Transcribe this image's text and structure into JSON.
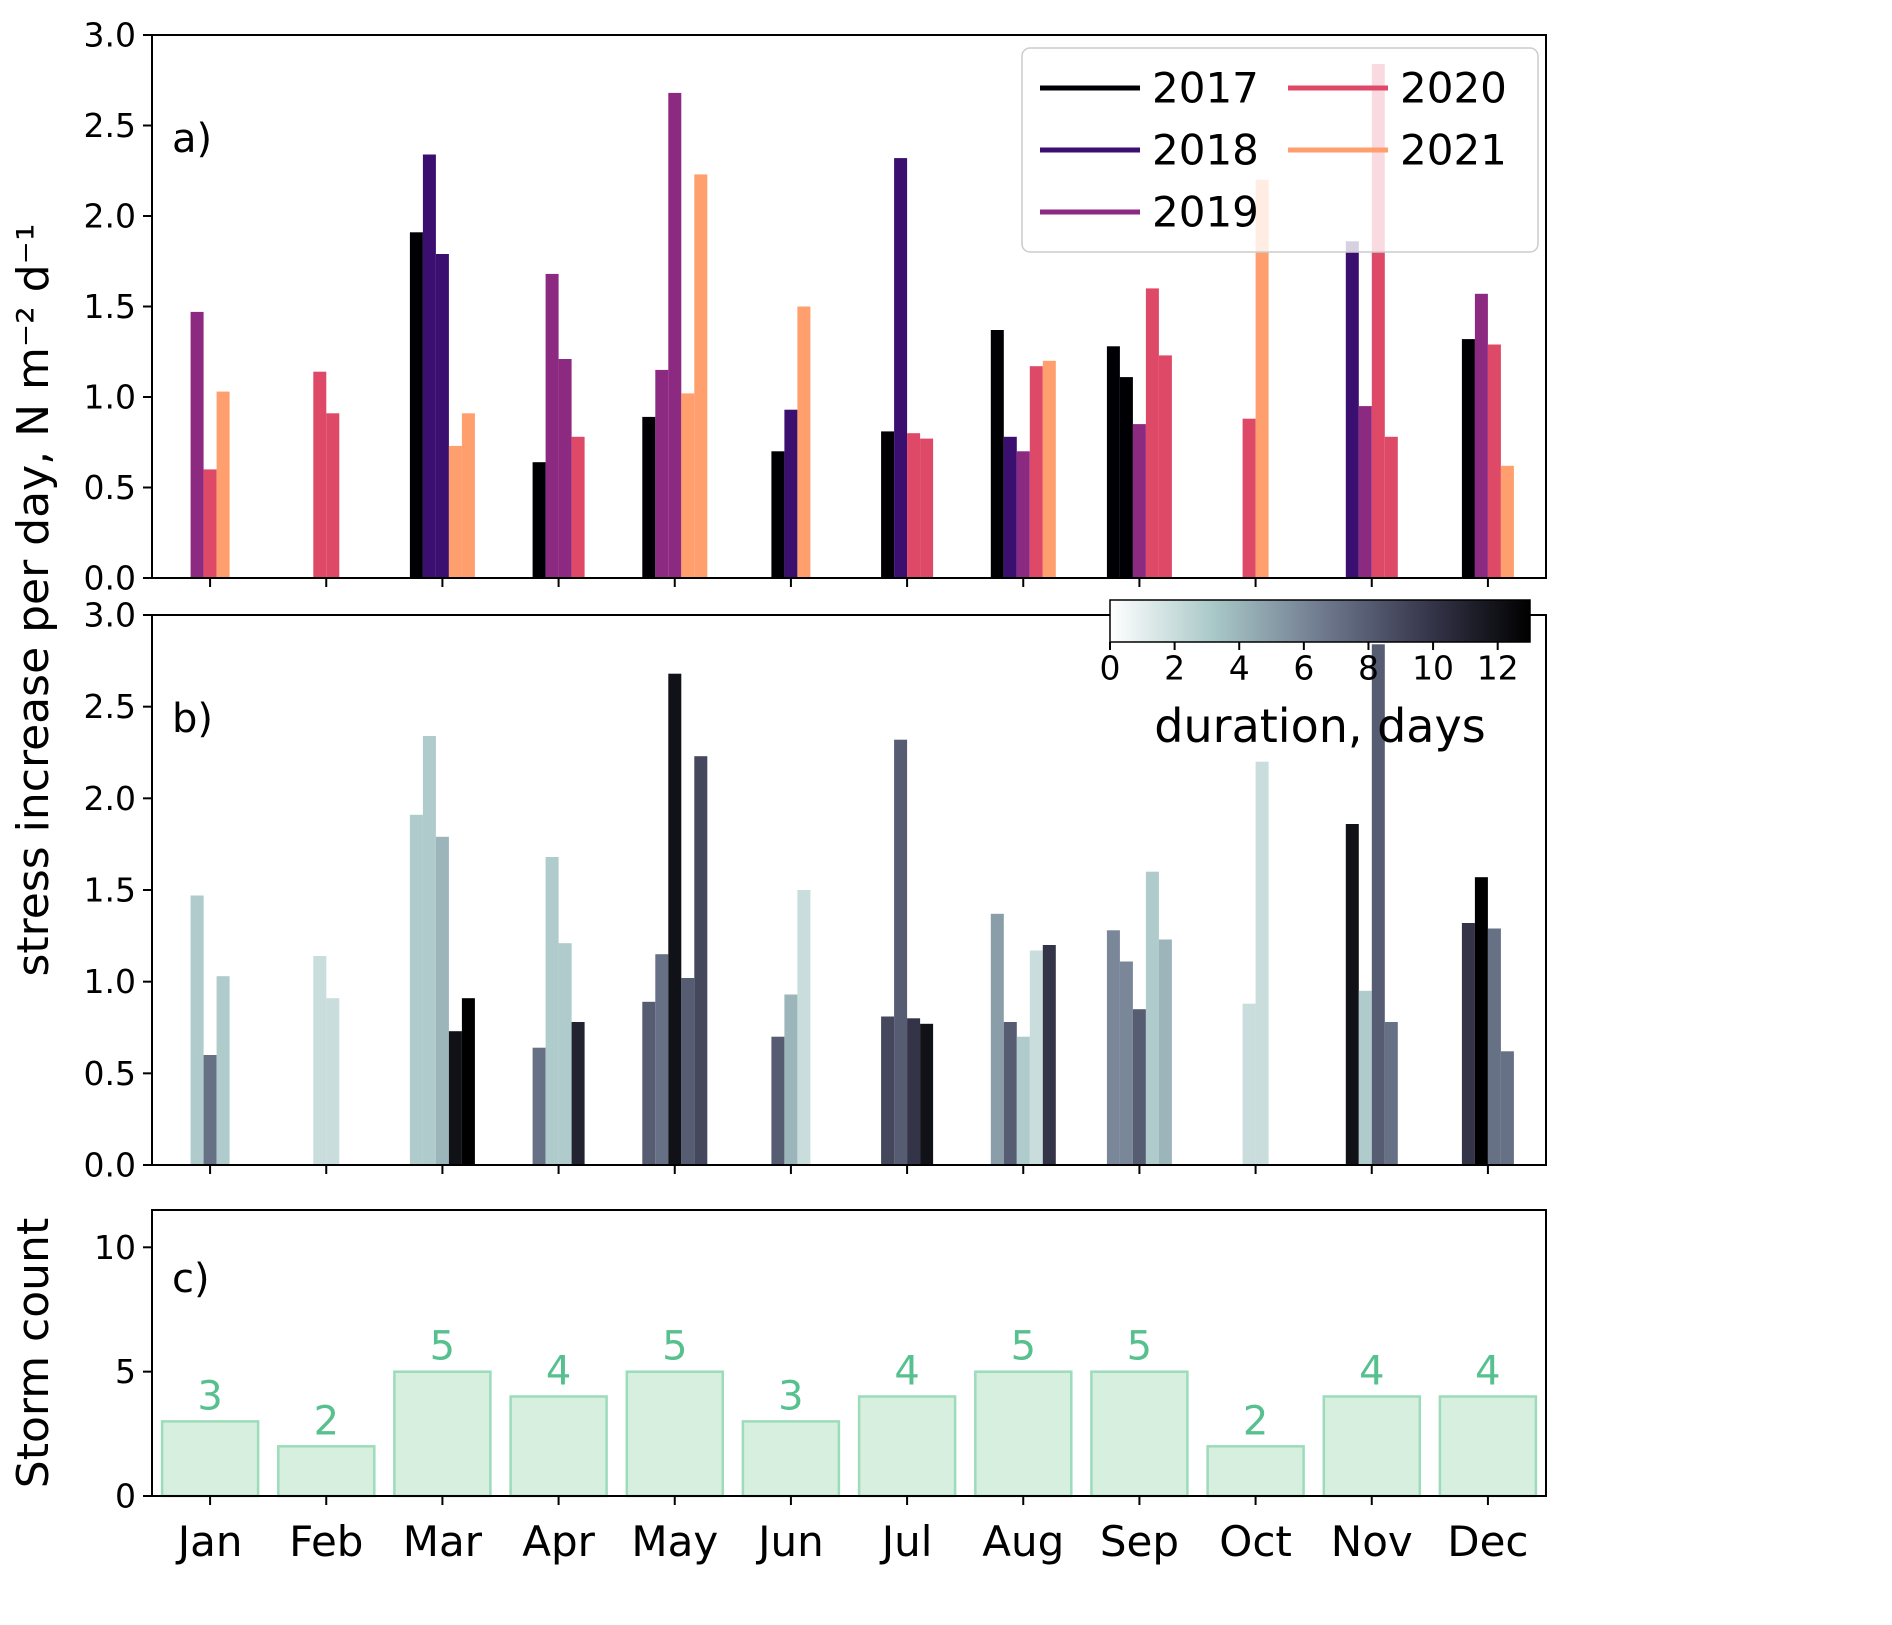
{
  "ui": {
    "ylabel_ab": "stress increase per day, N m⁻² d⁻¹",
    "ylabel_c": "Storm count"
  },
  "chart_data": {
    "months": [
      "Jan",
      "Feb",
      "Mar",
      "Apr",
      "May",
      "Jun",
      "Jul",
      "Aug",
      "Sep",
      "Oct",
      "Nov",
      "Dec"
    ],
    "year_colors": {
      "2017": "#000004",
      "2018": "#3b0f70",
      "2019": "#8c2981",
      "2020": "#de4968",
      "2021": "#fe9f6d"
    },
    "panel_a": {
      "label": "a)",
      "type": "bar",
      "color_by": "year",
      "ylim": [
        0,
        3.0
      ],
      "yticks": [
        0,
        0.5,
        1,
        1.5,
        2,
        2.5,
        3
      ],
      "ytick_labels": [
        "0.0",
        "0.5",
        "1.0",
        "1.5",
        "2.0",
        "2.5",
        "3.0"
      ],
      "legend": {
        "position": "upper right",
        "columns": 2,
        "entries": [
          {
            "label": "2017",
            "color": "#000004"
          },
          {
            "label": "2018",
            "color": "#3b0f70"
          },
          {
            "label": "2019",
            "color": "#8c2981"
          },
          {
            "label": "2020",
            "color": "#de4968"
          },
          {
            "label": "2021",
            "color": "#fe9f6d"
          }
        ]
      }
    },
    "panel_b": {
      "label": "b)",
      "type": "bar",
      "color_by": "duration_days",
      "ylim": [
        0,
        3.0
      ],
      "yticks": [
        0,
        0.5,
        1,
        1.5,
        2,
        2.5,
        3
      ],
      "ytick_labels": [
        "0.0",
        "0.5",
        "1.0",
        "1.5",
        "2.0",
        "2.5",
        "3.0"
      ],
      "colorbar": {
        "label": "duration, days",
        "ticks": [
          0,
          2,
          4,
          6,
          8,
          10,
          12
        ],
        "vmin": 0,
        "vmax": 13,
        "colormap_stops": [
          [
            0,
            "#ffffff"
          ],
          [
            0.25,
            "#a8c7c7"
          ],
          [
            0.5,
            "#707b90"
          ],
          [
            0.75,
            "#38384e"
          ],
          [
            1,
            "#000000"
          ]
        ]
      }
    },
    "panel_c": {
      "label": "c)",
      "type": "bar",
      "ylabel": "Storm count",
      "categories": [
        "Jan",
        "Feb",
        "Mar",
        "Apr",
        "May",
        "Jun",
        "Jul",
        "Aug",
        "Sep",
        "Oct",
        "Nov",
        "Dec"
      ],
      "values": [
        3,
        2,
        5,
        4,
        5,
        3,
        4,
        5,
        5,
        2,
        4,
        4
      ],
      "ylim": [
        0,
        11.5
      ],
      "yticks": [
        0,
        5,
        10
      ],
      "ytick_labels": [
        "0",
        "5",
        "10"
      ],
      "bar_fill": "#d6efdf",
      "bar_edge": "#9cdcbb",
      "value_label_color": "#57c08f"
    },
    "storms": [
      {
        "month": "Jan",
        "year": 2019,
        "stress_increase_per_day": 1.47,
        "duration_days": 3
      },
      {
        "month": "Jan",
        "year": 2020,
        "stress_increase_per_day": 0.6,
        "duration_days": 7
      },
      {
        "month": "Jan",
        "year": 2021,
        "stress_increase_per_day": 1.03,
        "duration_days": 3
      },
      {
        "month": "Feb",
        "year": 2020,
        "stress_increase_per_day": 1.14,
        "duration_days": 2
      },
      {
        "month": "Feb",
        "year": 2020,
        "stress_increase_per_day": 0.91,
        "duration_days": 2
      },
      {
        "month": "Mar",
        "year": 2017,
        "stress_increase_per_day": 1.91,
        "duration_days": 3
      },
      {
        "month": "Mar",
        "year": 2018,
        "stress_increase_per_day": 2.34,
        "duration_days": 3
      },
      {
        "month": "Mar",
        "year": 2018,
        "stress_increase_per_day": 1.79,
        "duration_days": 4
      },
      {
        "month": "Mar",
        "year": 2021,
        "stress_increase_per_day": 0.73,
        "duration_days": 12
      },
      {
        "month": "Mar",
        "year": 2021,
        "stress_increase_per_day": 0.91,
        "duration_days": 13
      },
      {
        "month": "Apr",
        "year": 2017,
        "stress_increase_per_day": 0.64,
        "duration_days": 7
      },
      {
        "month": "Apr",
        "year": 2019,
        "stress_increase_per_day": 1.68,
        "duration_days": 3
      },
      {
        "month": "Apr",
        "year": 2019,
        "stress_increase_per_day": 1.21,
        "duration_days": 3
      },
      {
        "month": "Apr",
        "year": 2020,
        "stress_increase_per_day": 0.78,
        "duration_days": 11
      },
      {
        "month": "May",
        "year": 2017,
        "stress_increase_per_day": 0.89,
        "duration_days": 8
      },
      {
        "month": "May",
        "year": 2019,
        "stress_increase_per_day": 1.15,
        "duration_days": 7
      },
      {
        "month": "May",
        "year": 2019,
        "stress_increase_per_day": 2.68,
        "duration_days": 12
      },
      {
        "month": "May",
        "year": 2021,
        "stress_increase_per_day": 1.02,
        "duration_days": 8
      },
      {
        "month": "May",
        "year": 2021,
        "stress_increase_per_day": 2.23,
        "duration_days": 9
      },
      {
        "month": "Jun",
        "year": 2017,
        "stress_increase_per_day": 0.7,
        "duration_days": 8
      },
      {
        "month": "Jun",
        "year": 2018,
        "stress_increase_per_day": 0.93,
        "duration_days": 4
      },
      {
        "month": "Jun",
        "year": 2021,
        "stress_increase_per_day": 1.5,
        "duration_days": 2
      },
      {
        "month": "Jul",
        "year": 2017,
        "stress_increase_per_day": 0.81,
        "duration_days": 9
      },
      {
        "month": "Jul",
        "year": 2018,
        "stress_increase_per_day": 2.32,
        "duration_days": 8
      },
      {
        "month": "Jul",
        "year": 2020,
        "stress_increase_per_day": 0.8,
        "duration_days": 10
      },
      {
        "month": "Jul",
        "year": 2020,
        "stress_increase_per_day": 0.77,
        "duration_days": 12
      },
      {
        "month": "Aug",
        "year": 2017,
        "stress_increase_per_day": 1.37,
        "duration_days": 5
      },
      {
        "month": "Aug",
        "year": 2018,
        "stress_increase_per_day": 0.78,
        "duration_days": 8
      },
      {
        "month": "Aug",
        "year": 2019,
        "stress_increase_per_day": 0.7,
        "duration_days": 3
      },
      {
        "month": "Aug",
        "year": 2020,
        "stress_increase_per_day": 1.17,
        "duration_days": 2
      },
      {
        "month": "Aug",
        "year": 2021,
        "stress_increase_per_day": 1.2,
        "duration_days": 10
      },
      {
        "month": "Sep",
        "year": 2017,
        "stress_increase_per_day": 1.28,
        "duration_days": 6
      },
      {
        "month": "Sep",
        "year": 2017,
        "stress_increase_per_day": 1.11,
        "duration_days": 6
      },
      {
        "month": "Sep",
        "year": 2019,
        "stress_increase_per_day": 0.85,
        "duration_days": 8
      },
      {
        "month": "Sep",
        "year": 2020,
        "stress_increase_per_day": 1.6,
        "duration_days": 3
      },
      {
        "month": "Sep",
        "year": 2020,
        "stress_increase_per_day": 1.23,
        "duration_days": 4
      },
      {
        "month": "Oct",
        "year": 2020,
        "stress_increase_per_day": 0.88,
        "duration_days": 2
      },
      {
        "month": "Oct",
        "year": 2021,
        "stress_increase_per_day": 2.2,
        "duration_days": 2
      },
      {
        "month": "Nov",
        "year": 2018,
        "stress_increase_per_day": 1.86,
        "duration_days": 12
      },
      {
        "month": "Nov",
        "year": 2019,
        "stress_increase_per_day": 0.95,
        "duration_days": 3
      },
      {
        "month": "Nov",
        "year": 2020,
        "stress_increase_per_day": 2.84,
        "duration_days": 8
      },
      {
        "month": "Nov",
        "year": 2020,
        "stress_increase_per_day": 0.78,
        "duration_days": 7
      },
      {
        "month": "Dec",
        "year": 2017,
        "stress_increase_per_day": 1.32,
        "duration_days": 10
      },
      {
        "month": "Dec",
        "year": 2019,
        "stress_increase_per_day": 1.57,
        "duration_days": 13
      },
      {
        "month": "Dec",
        "year": 2020,
        "stress_increase_per_day": 1.29,
        "duration_days": 7
      },
      {
        "month": "Dec",
        "year": 2021,
        "stress_increase_per_day": 0.62,
        "duration_days": 7
      }
    ]
  }
}
